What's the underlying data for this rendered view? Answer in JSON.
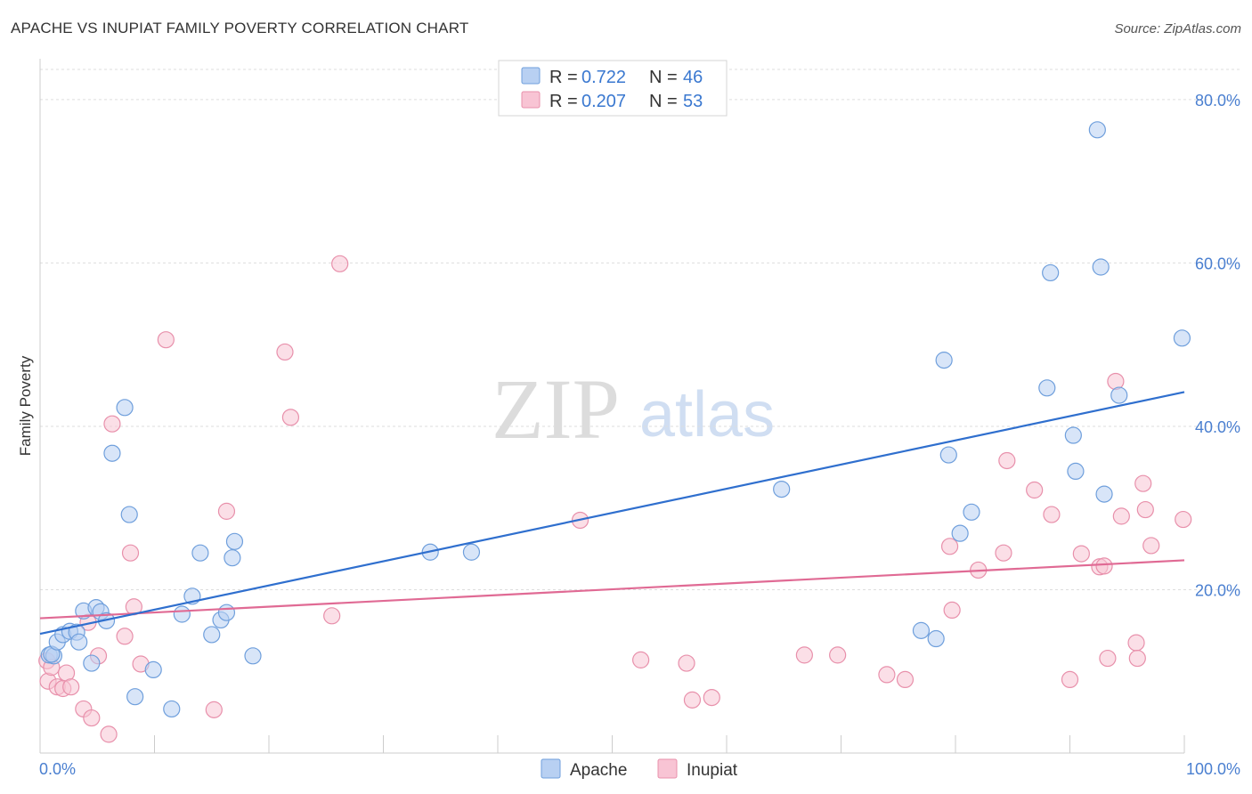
{
  "title": "APACHE VS INUPIAT FAMILY POVERTY CORRELATION CHART",
  "source": "Source: ZipAtlas.com",
  "watermark": {
    "zip": "ZIP",
    "atlas": "atlas"
  },
  "colors": {
    "apache_fill": "#b8d0f2",
    "apache_stroke": "#6f9fdc",
    "apache_line": "#2f6fce",
    "inupiat_fill": "#f8c4d4",
    "inupiat_stroke": "#e890ab",
    "inupiat_line": "#e06a94",
    "tick_label": "#4a7fd0",
    "grid": "#dddddd"
  },
  "legend": {
    "rows": [
      {
        "r_label": "R =",
        "r_value": "0.722",
        "n_label": "N =",
        "n_value": "46"
      },
      {
        "r_label": "R =",
        "r_value": "0.207",
        "n_label": "N =",
        "n_value": "53"
      }
    ]
  },
  "chart_data": {
    "type": "scatter",
    "title": "APACHE VS INUPIAT FAMILY POVERTY CORRELATION CHART",
    "xlabel": "",
    "ylabel": "Family Poverty",
    "xlim": [
      0,
      100
    ],
    "ylim": [
      0,
      85
    ],
    "x_tick_labels": [
      "0.0%",
      "100.0%"
    ],
    "y_ticks": [
      20,
      40,
      60,
      80
    ],
    "y_tick_labels": [
      "20.0%",
      "40.0%",
      "60.0%",
      "80.0%"
    ],
    "series": [
      {
        "name": "Apache",
        "trend": [
          [
            0,
            14.6
          ],
          [
            100,
            44.2
          ]
        ],
        "points": [
          [
            0.8,
            12.0
          ],
          [
            1.2,
            11.9
          ],
          [
            1.0,
            12.1
          ],
          [
            1.5,
            13.6
          ],
          [
            2.0,
            14.5
          ],
          [
            2.6,
            14.9
          ],
          [
            3.2,
            14.8
          ],
          [
            3.4,
            13.6
          ],
          [
            3.8,
            17.4
          ],
          [
            4.5,
            11.0
          ],
          [
            4.9,
            17.8
          ],
          [
            5.3,
            17.3
          ],
          [
            5.8,
            16.2
          ],
          [
            6.3,
            36.7
          ],
          [
            7.4,
            42.3
          ],
          [
            7.8,
            29.2
          ],
          [
            8.3,
            6.9
          ],
          [
            9.9,
            10.2
          ],
          [
            11.5,
            5.4
          ],
          [
            12.4,
            17.0
          ],
          [
            13.3,
            19.2
          ],
          [
            14.0,
            24.5
          ],
          [
            15.0,
            14.5
          ],
          [
            15.8,
            16.3
          ],
          [
            16.3,
            17.2
          ],
          [
            16.8,
            23.9
          ],
          [
            17.0,
            25.9
          ],
          [
            18.6,
            11.9
          ],
          [
            34.1,
            24.6
          ],
          [
            37.7,
            24.6
          ],
          [
            64.8,
            32.3
          ],
          [
            77.0,
            15.0
          ],
          [
            78.3,
            14.0
          ],
          [
            79.0,
            48.1
          ],
          [
            79.4,
            36.5
          ],
          [
            80.4,
            26.9
          ],
          [
            81.4,
            29.5
          ],
          [
            88.0,
            44.7
          ],
          [
            90.5,
            34.5
          ],
          [
            88.3,
            58.8
          ],
          [
            90.3,
            38.9
          ],
          [
            92.4,
            76.3
          ],
          [
            92.7,
            59.5
          ],
          [
            94.3,
            43.8
          ],
          [
            93.0,
            31.7
          ],
          [
            99.8,
            50.8
          ]
        ]
      },
      {
        "name": "Inupiat",
        "trend": [
          [
            0,
            16.5
          ],
          [
            100,
            23.6
          ]
        ],
        "points": [
          [
            0.6,
            11.3
          ],
          [
            0.7,
            8.8
          ],
          [
            1.0,
            10.5
          ],
          [
            1.5,
            8.1
          ],
          [
            2.0,
            7.9
          ],
          [
            2.3,
            9.8
          ],
          [
            2.7,
            8.1
          ],
          [
            3.8,
            5.4
          ],
          [
            4.2,
            16.0
          ],
          [
            4.5,
            4.3
          ],
          [
            5.1,
            11.9
          ],
          [
            6.0,
            2.3
          ],
          [
            7.4,
            14.3
          ],
          [
            7.9,
            24.5
          ],
          [
            8.2,
            17.9
          ],
          [
            8.8,
            10.9
          ],
          [
            11.0,
            50.6
          ],
          [
            6.3,
            40.3
          ],
          [
            15.2,
            5.3
          ],
          [
            16.3,
            29.6
          ],
          [
            21.4,
            49.1
          ],
          [
            21.9,
            41.1
          ],
          [
            26.2,
            59.9
          ],
          [
            25.5,
            16.8
          ],
          [
            47.2,
            28.5
          ],
          [
            52.5,
            11.4
          ],
          [
            56.5,
            11.0
          ],
          [
            57.0,
            6.5
          ],
          [
            58.7,
            6.8
          ],
          [
            66.8,
            12.0
          ],
          [
            69.7,
            12.0
          ],
          [
            74.0,
            9.6
          ],
          [
            75.6,
            9.0
          ],
          [
            79.5,
            25.3
          ],
          [
            79.7,
            17.5
          ],
          [
            82.0,
            22.4
          ],
          [
            84.2,
            24.5
          ],
          [
            84.5,
            35.8
          ],
          [
            86.9,
            32.2
          ],
          [
            88.4,
            29.2
          ],
          [
            90.0,
            9.0
          ],
          [
            91.0,
            24.4
          ],
          [
            92.6,
            22.8
          ],
          [
            93.0,
            22.9
          ],
          [
            93.3,
            11.6
          ],
          [
            94.0,
            45.5
          ],
          [
            94.5,
            29.0
          ],
          [
            95.8,
            13.5
          ],
          [
            95.9,
            11.6
          ],
          [
            96.4,
            33.0
          ],
          [
            96.6,
            29.8
          ],
          [
            97.1,
            25.4
          ],
          [
            99.9,
            28.6
          ]
        ]
      }
    ]
  }
}
